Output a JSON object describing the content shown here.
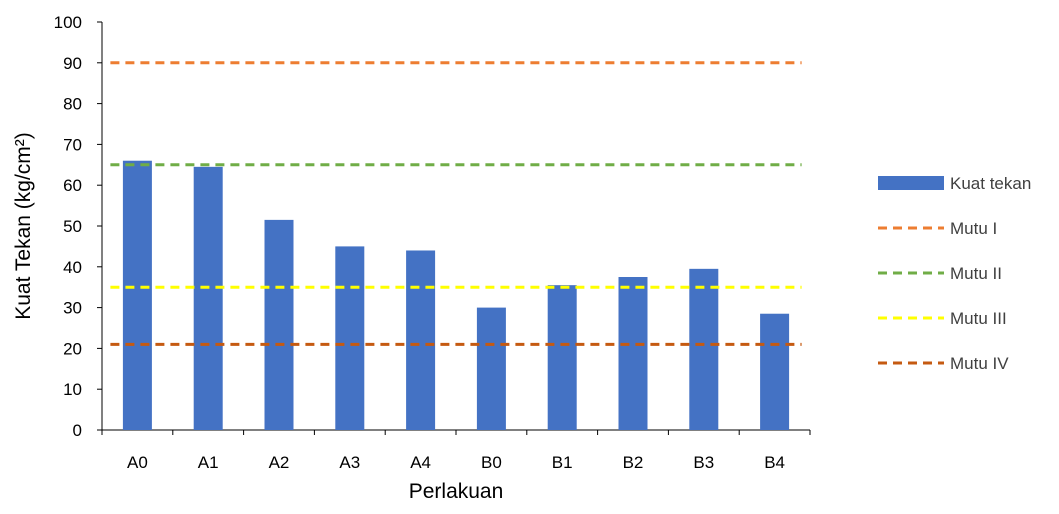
{
  "chart_data": {
    "type": "bar",
    "categories": [
      "A0",
      "A1",
      "A2",
      "A3",
      "A4",
      "B0",
      "B1",
      "B2",
      "B3",
      "B4"
    ],
    "series": [
      {
        "name": "Kuat tekan",
        "kind": "bar",
        "color": "#4472C4",
        "values": [
          66,
          64.5,
          51.5,
          45,
          44,
          30,
          35.5,
          37.5,
          39.5,
          28.5
        ]
      }
    ],
    "reference_lines": [
      {
        "name": "Mutu I",
        "value": 90,
        "color": "#ED7D31",
        "style": "dashed"
      },
      {
        "name": "Mutu II",
        "value": 65,
        "color": "#70AD47",
        "style": "dashed"
      },
      {
        "name": "Mutu III",
        "value": 35,
        "color": "#FFFF00",
        "style": "dashed"
      },
      {
        "name": "Mutu IV",
        "value": 21,
        "color": "#C55A11",
        "style": "dashed"
      }
    ],
    "xlabel": "Perlakuan",
    "ylabel": "Kuat Tekan (kg/cm²)",
    "ylim": [
      0,
      100
    ],
    "yticks": [
      0,
      10,
      20,
      30,
      40,
      50,
      60,
      70,
      80,
      90,
      100
    ],
    "grid": false,
    "legend_position": "right"
  }
}
